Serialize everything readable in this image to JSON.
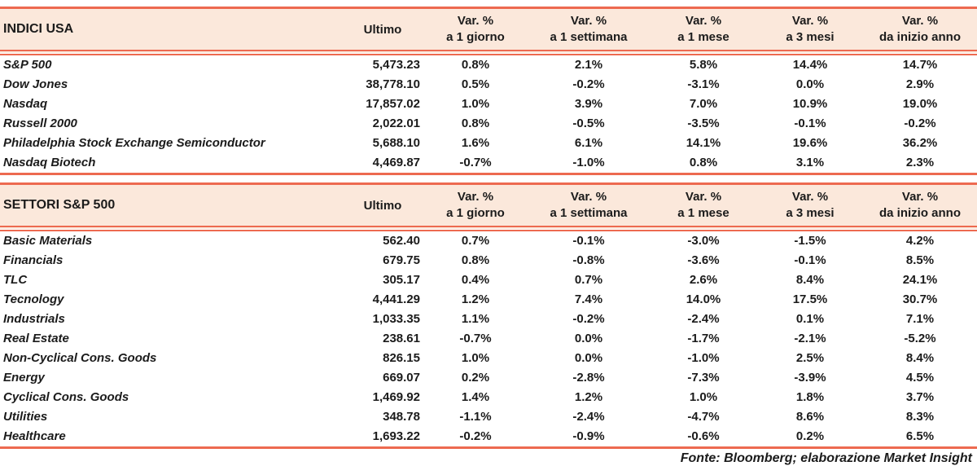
{
  "colors": {
    "accent": "#ED6A50",
    "header_bg": "#FBE8DB",
    "text": "#1B1B1B"
  },
  "footer": "Fonte: Bloomberg; elaborazione Market Insight",
  "tables": [
    {
      "title": "INDICI USA",
      "ultimo_label": "Ultimo",
      "pct_columns": [
        {
          "line1": "Var. %",
          "line2": "a 1 giorno"
        },
        {
          "line1": "Var. %",
          "line2": "a 1 settimana"
        },
        {
          "line1": "Var. %",
          "line2": "a 1 mese"
        },
        {
          "line1": "Var. %",
          "line2": "a 3 mesi"
        },
        {
          "line1": "Var. %",
          "line2": "da inizio anno"
        }
      ],
      "rows": [
        {
          "name": "S&P 500",
          "ultimo": "5,473.23",
          "pcts": [
            "0.8%",
            "2.1%",
            "5.8%",
            "14.4%",
            "14.7%"
          ]
        },
        {
          "name": "Dow Jones",
          "ultimo": "38,778.10",
          "pcts": [
            "0.5%",
            "-0.2%",
            "-3.1%",
            "0.0%",
            "2.9%"
          ]
        },
        {
          "name": "Nasdaq",
          "ultimo": "17,857.02",
          "pcts": [
            "1.0%",
            "3.9%",
            "7.0%",
            "10.9%",
            "19.0%"
          ]
        },
        {
          "name": "Russell 2000",
          "ultimo": "2,022.01",
          "pcts": [
            "0.8%",
            "-0.5%",
            "-3.5%",
            "-0.1%",
            "-0.2%"
          ]
        },
        {
          "name": "Philadelphia Stock Exchange Semiconductor",
          "ultimo": "5,688.10",
          "pcts": [
            "1.6%",
            "6.1%",
            "14.1%",
            "19.6%",
            "36.2%"
          ]
        },
        {
          "name": "Nasdaq Biotech",
          "ultimo": "4,469.87",
          "pcts": [
            "-0.7%",
            "-1.0%",
            "0.8%",
            "3.1%",
            "2.3%"
          ]
        }
      ]
    },
    {
      "title": "SETTORI S&P 500",
      "ultimo_label": "Ultimo",
      "pct_columns": [
        {
          "line1": "Var. %",
          "line2": "a 1 giorno"
        },
        {
          "line1": "Var. %",
          "line2": "a 1 settimana"
        },
        {
          "line1": "Var. %",
          "line2": "a 1 mese"
        },
        {
          "line1": "Var. %",
          "line2": "a 3 mesi"
        },
        {
          "line1": "Var. %",
          "line2": "da inizio anno"
        }
      ],
      "rows": [
        {
          "name": "Basic Materials",
          "ultimo": "562.40",
          "pcts": [
            "0.7%",
            "-0.1%",
            "-3.0%",
            "-1.5%",
            "4.2%"
          ]
        },
        {
          "name": "Financials",
          "ultimo": "679.75",
          "pcts": [
            "0.8%",
            "-0.8%",
            "-3.6%",
            "-0.1%",
            "8.5%"
          ]
        },
        {
          "name": "TLC",
          "ultimo": "305.17",
          "pcts": [
            "0.4%",
            "0.7%",
            "2.6%",
            "8.4%",
            "24.1%"
          ]
        },
        {
          "name": "Tecnology",
          "ultimo": "4,441.29",
          "pcts": [
            "1.2%",
            "7.4%",
            "14.0%",
            "17.5%",
            "30.7%"
          ]
        },
        {
          "name": "Industrials",
          "ultimo": "1,033.35",
          "pcts": [
            "1.1%",
            "-0.2%",
            "-2.4%",
            "0.1%",
            "7.1%"
          ]
        },
        {
          "name": "Real Estate",
          "ultimo": "238.61",
          "pcts": [
            "-0.7%",
            "0.0%",
            "-1.7%",
            "-2.1%",
            "-5.2%"
          ]
        },
        {
          "name": "Non-Cyclical Cons. Goods",
          "ultimo": "826.15",
          "pcts": [
            "1.0%",
            "0.0%",
            "-1.0%",
            "2.5%",
            "8.4%"
          ]
        },
        {
          "name": "Energy",
          "ultimo": "669.07",
          "pcts": [
            "0.2%",
            "-2.8%",
            "-7.3%",
            "-3.9%",
            "4.5%"
          ]
        },
        {
          "name": "Cyclical Cons. Goods",
          "ultimo": "1,469.92",
          "pcts": [
            "1.4%",
            "1.2%",
            "1.0%",
            "1.8%",
            "3.7%"
          ]
        },
        {
          "name": "Utilities",
          "ultimo": "348.78",
          "pcts": [
            "-1.1%",
            "-2.4%",
            "-4.7%",
            "8.6%",
            "8.3%"
          ]
        },
        {
          "name": "Healthcare",
          "ultimo": "1,693.22",
          "pcts": [
            "-0.2%",
            "-0.9%",
            "-0.6%",
            "0.2%",
            "6.5%"
          ]
        }
      ]
    }
  ]
}
